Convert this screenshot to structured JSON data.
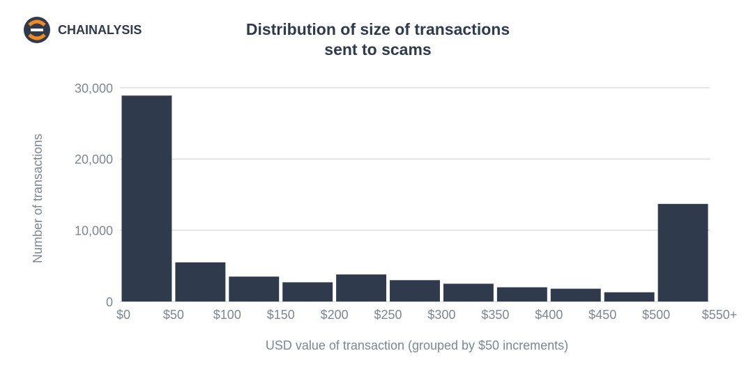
{
  "brand": "CHAINALYSIS",
  "chart_data": {
    "type": "histogram",
    "title": [
      "Distribution of size of transactions",
      "sent to scams"
    ],
    "x_label": "USD value of transaction (grouped by $50 increments)",
    "y_label": "Number of transactions",
    "bins": [
      0,
      50,
      100,
      150,
      200,
      250,
      300,
      350,
      400,
      450,
      500,
      550
    ],
    "values": [
      28900,
      5500,
      3500,
      2700,
      3800,
      3000,
      2500,
      2000,
      1800,
      1300,
      13700
    ],
    "color": "#2f3b4d",
    "xlim": [
      0,
      550
    ],
    "xticks": [
      {
        "value": 0,
        "label": "$0"
      },
      {
        "value": 50,
        "label": "$50"
      },
      {
        "value": 100,
        "label": "$100"
      },
      {
        "value": 150,
        "label": "$150"
      },
      {
        "value": 200,
        "label": "$200"
      },
      {
        "value": 250,
        "label": "$250"
      },
      {
        "value": 300,
        "label": "$300"
      },
      {
        "value": 350,
        "label": "$350"
      },
      {
        "value": 400,
        "label": "$400"
      },
      {
        "value": 450,
        "label": "$450"
      },
      {
        "value": 500,
        "label": "$500"
      },
      {
        "value": 550,
        "label": "$550+"
      }
    ],
    "ylim": [
      0,
      30000
    ],
    "yticks": [
      0,
      {
        "value": 10000,
        "label": "10,000"
      },
      {
        "value": 20000,
        "label": "20,000"
      },
      {
        "value": 30000,
        "label": "30,000"
      }
    ],
    "grid": true
  }
}
